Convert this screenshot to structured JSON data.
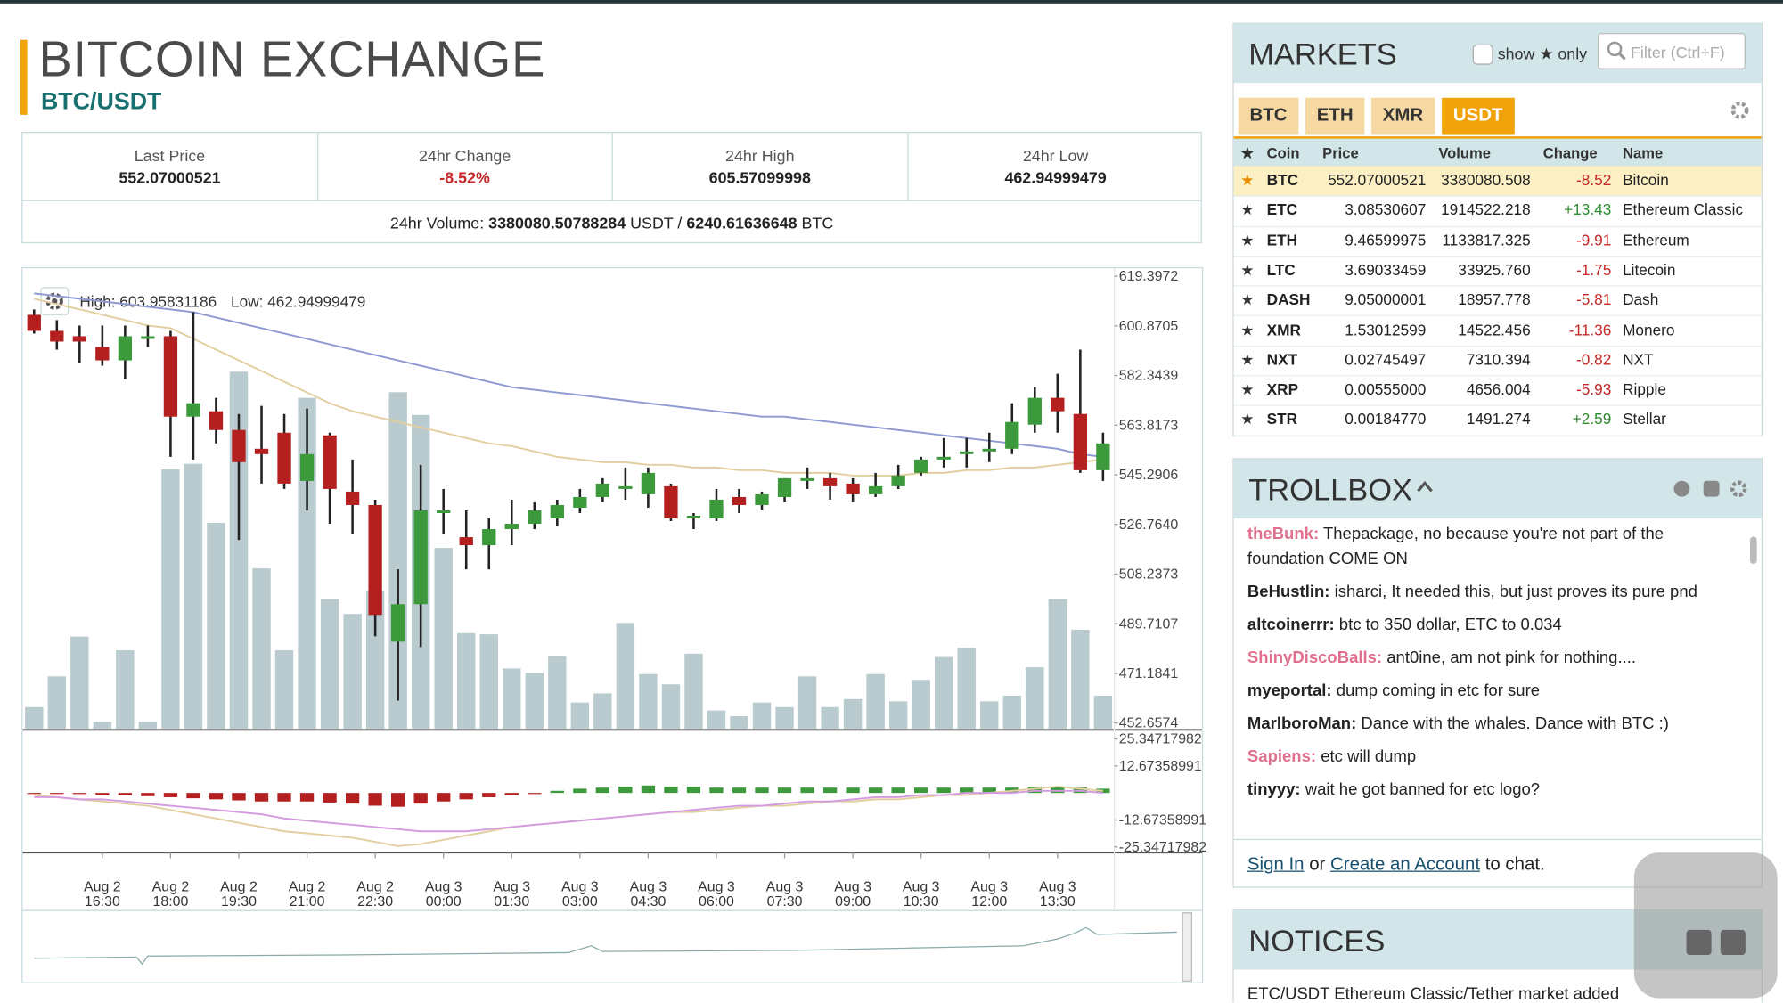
{
  "header": {
    "title": "BITCOIN EXCHANGE",
    "pair": "BTC/USDT"
  },
  "stats": {
    "cells": [
      {
        "label": "Last Price",
        "value": "552.07000521"
      },
      {
        "label": "24hr Change",
        "value": "-8.52%"
      },
      {
        "label": "24hr High",
        "value": "605.57099998"
      },
      {
        "label": "24hr Low",
        "value": "462.94999479"
      }
    ],
    "volume": {
      "label": "24hr Volume:",
      "usdt": "3380080.50788284",
      "usdt_unit": "USDT",
      "separator": "/",
      "btc": "6240.61636648",
      "btc_unit": "BTC"
    }
  },
  "chart_data": {
    "type": "candlestick",
    "high_label": "High: 603.95831186",
    "low_label": "Low: 462.94999479",
    "categories": [
      null,
      null,
      null,
      "Aug 2\n16:30",
      null,
      null,
      "Aug 2\n18:00",
      null,
      null,
      "Aug 2\n19:30",
      null,
      null,
      "Aug 2\n21:00",
      null,
      null,
      "Aug 2\n22:30",
      null,
      null,
      "Aug 3\n00:00",
      null,
      null,
      "Aug 3\n01:30",
      null,
      null,
      "Aug 3\n03:00",
      null,
      null,
      "Aug 3\n04:30",
      null,
      null,
      "Aug 3\n06:00",
      null,
      null,
      "Aug 3\n07:30",
      null,
      null,
      "Aug 3\n09:00",
      null,
      null,
      "Aug 3\n10:30",
      null,
      null,
      "Aug 3\n12:00",
      null,
      null,
      "Aug 3\n13:30",
      null,
      null
    ],
    "open": [
      605,
      599,
      597,
      593,
      588,
      596,
      597,
      567,
      569,
      562,
      555,
      561,
      543,
      560,
      539,
      534,
      483,
      497,
      531,
      522,
      519,
      525,
      527,
      529,
      533,
      537,
      540,
      538,
      541,
      529,
      529,
      537,
      534,
      537,
      543,
      544,
      542,
      538,
      541,
      546,
      551,
      553,
      554,
      555,
      564,
      574,
      568,
      547
    ],
    "high": [
      607,
      603,
      601,
      601,
      601,
      601,
      599,
      606,
      574,
      568,
      571,
      568,
      570,
      561,
      551,
      536,
      510,
      549,
      540,
      532,
      529,
      536,
      535,
      536,
      540,
      544,
      548,
      548,
      542,
      531,
      540,
      540,
      539,
      544,
      548,
      546,
      544,
      546,
      549,
      552,
      559,
      559,
      561,
      572,
      578,
      583,
      592,
      561
    ],
    "low": [
      598,
      592,
      587,
      586,
      581,
      593,
      552,
      551,
      557,
      521,
      542,
      540,
      532,
      527,
      523,
      485,
      461,
      481,
      523,
      510,
      510,
      519,
      525,
      526,
      531,
      535,
      536,
      533,
      528,
      525,
      528,
      531,
      532,
      535,
      540,
      536,
      535,
      537,
      540,
      545,
      548,
      548,
      550,
      553,
      561,
      561,
      546,
      543
    ],
    "close": [
      599,
      595,
      595,
      588,
      597,
      597,
      567,
      572,
      562,
      550,
      553,
      542,
      553,
      540,
      534,
      493,
      497,
      532,
      532,
      519,
      525,
      527,
      532,
      534,
      537,
      542,
      541,
      546,
      529,
      530,
      536,
      534,
      538,
      544,
      544,
      541,
      538,
      541,
      545,
      551,
      552,
      554,
      555,
      565,
      574,
      569,
      547,
      557
    ],
    "volume": [
      19,
      46,
      81,
      6,
      69,
      6,
      228,
      233,
      181,
      314,
      141,
      69,
      291,
      114,
      101,
      121,
      296,
      276,
      159,
      84,
      83,
      53,
      49,
      64,
      23,
      31,
      93,
      48,
      39,
      66,
      16,
      11,
      23,
      19,
      46,
      19,
      26,
      48,
      24,
      43,
      63,
      71,
      24,
      29,
      54,
      114,
      87,
      29
    ],
    "up_color": "#3c9a3c",
    "down_color": "#b3201f",
    "volume_color": "#b9cbce",
    "moving_averages": [
      {
        "color": "#8d9ad2",
        "values": [
          613,
          612,
          611,
          610,
          609,
          608,
          607,
          606,
          604,
          602,
          600,
          598,
          596,
          594,
          592,
          590,
          588,
          586,
          584,
          582,
          580,
          578,
          577,
          576,
          575,
          574,
          573,
          572,
          571,
          570,
          569,
          568,
          567,
          567,
          566,
          565,
          564,
          563,
          562,
          561,
          560,
          559,
          558,
          557,
          556,
          555,
          553,
          552
        ]
      },
      {
        "color": "#e2cf9f",
        "values": [
          611,
          609,
          607,
          605,
          603,
          601,
          600,
          596,
          592,
          588,
          584,
          580,
          576,
          572,
          569,
          567,
          565,
          563,
          561,
          559,
          557,
          556,
          554,
          552,
          551,
          550,
          550,
          549,
          549,
          548,
          548,
          547,
          547,
          546,
          546,
          546,
          545,
          545,
          545,
          546,
          546,
          547,
          547,
          548,
          548,
          549,
          550,
          551
        ]
      }
    ],
    "ylim": [
      450.54,
      621.94
    ],
    "yticks": [
      619.3972,
      600.8705,
      582.3439,
      563.8173,
      545.2906,
      {
        "value": 526.764,
        "label": "526.7640"
      },
      508.2373,
      489.7107,
      471.1841,
      452.6574
    ],
    "macd": {
      "ylim": [
        -28,
        29.1
      ],
      "yticks": [
        25.34717982,
        12.67358991,
        -12.67358991,
        -25.34717982
      ],
      "histogram": [
        -0.5,
        -0.5,
        -0.5,
        -1,
        -1,
        -1.5,
        -2,
        -2.5,
        -3,
        -3.5,
        -4,
        -4,
        -4,
        -4.5,
        -5,
        -6,
        -6.5,
        -5,
        -4,
        -3,
        -2,
        -1,
        -0.5,
        1,
        2,
        2.5,
        3,
        3.5,
        3,
        3,
        2.5,
        2.5,
        2.5,
        2.5,
        2.5,
        2.5,
        2.5,
        2.5,
        2.5,
        2.5,
        2.5,
        2.5,
        2.5,
        2.5,
        3,
        3,
        2.5,
        2
      ],
      "macd": [
        -1,
        -2,
        -3,
        -4,
        -5,
        -6,
        -8,
        -10,
        -12,
        -14,
        -16,
        -18,
        -19,
        -20,
        -21,
        -23,
        -25,
        -24,
        -22,
        -20,
        -18,
        -16,
        -15,
        -14,
        -13,
        -12,
        -11,
        -10,
        -9,
        -9,
        -8,
        -7,
        -6,
        -6,
        -5,
        -4,
        -4,
        -3,
        -3,
        -2,
        -1,
        -1,
        0,
        1,
        2,
        3,
        2,
        1
      ],
      "signal": [
        -2,
        -2,
        -3,
        -3,
        -4,
        -5,
        -6,
        -7,
        -8,
        -9,
        -10,
        -12,
        -13,
        -14,
        -15,
        -16,
        -17,
        -18,
        -18,
        -18,
        -17,
        -16,
        -15,
        -14,
        -13,
        -12,
        -11,
        -10,
        -9,
        -8,
        -7,
        -6,
        -6,
        -5,
        -4,
        -4,
        -3,
        -2,
        -2,
        -1,
        -1,
        0,
        0,
        0,
        1,
        1,
        1,
        0
      ],
      "macd_color": "#e2cf9f",
      "signal_color": "#d49be0"
    }
  },
  "markets": {
    "title": "MARKETS",
    "show_only": "show ★ only",
    "filter": "Filter (Ctrl+F)",
    "tabs": [
      "BTC",
      "ETH",
      "XMR",
      "USDT"
    ],
    "columns": [
      "Coin",
      "Price",
      "Volume",
      "Change",
      "Name"
    ],
    "rows": [
      {
        "coin": "BTC",
        "price": "552.07000521",
        "volume": "3380080.508",
        "change": "-8.52",
        "name": "Bitcoin"
      },
      {
        "coin": "ETC",
        "price": "3.08530607",
        "volume": "1914522.218",
        "change": "+13.43",
        "name": "Ethereum Classic"
      },
      {
        "coin": "ETH",
        "price": "9.46599975",
        "volume": "1133817.325",
        "change": "-9.91",
        "name": "Ethereum"
      },
      {
        "coin": "LTC",
        "price": "3.69033459",
        "volume": "33925.760",
        "change": "-1.75",
        "name": "Litecoin"
      },
      {
        "coin": "DASH",
        "price": "9.05000001",
        "volume": "18957.778",
        "change": "-5.81",
        "name": "Dash"
      },
      {
        "coin": "XMR",
        "price": "1.53012599",
        "volume": "14522.456",
        "change": "-11.36",
        "name": "Monero"
      },
      {
        "coin": "NXT",
        "price": "0.02745497",
        "volume": "7310.394",
        "change": "-0.82",
        "name": "NXT"
      },
      {
        "coin": "XRP",
        "price": "0.00555000",
        "volume": "4656.004",
        "change": "-5.93",
        "name": "Ripple"
      },
      {
        "coin": "STR",
        "price": "0.00184770",
        "volume": "1491.274",
        "change": "+2.59",
        "name": "Stellar"
      }
    ]
  },
  "trollbox": {
    "title": "TROLLBOX",
    "messages": [
      {
        "user": "theBunk:",
        "text": "Thepackage, no because you're not part of the foundation COME ON",
        "color": "#e0708e"
      },
      {
        "user": "BeHustlin:",
        "text": "isharci, It needed this, but just proves its pure pnd",
        "color": "#222222"
      },
      {
        "user": "altcoinerrr:",
        "text": "btc to 350 dollar, ETC to 0.034",
        "color": "#222222"
      },
      {
        "user": "ShinyDiscoBalls:",
        "text": "ant0ine, am not pink for nothing....",
        "color": "#e0708e"
      },
      {
        "user": "myeportal:",
        "text": "dump coming in etc for sure",
        "color": "#222222"
      },
      {
        "user": "MarlboroMan:",
        "text": "Dance with the whales. Dance with BTC :)",
        "color": "#222222"
      },
      {
        "user": "Sapiens:",
        "text": "etc will dump",
        "color": "#e0708e"
      },
      {
        "user": "tinyyy:",
        "text": "wait he got banned for etc logo?",
        "color": "#222222"
      }
    ],
    "sign_in": "Sign In",
    "or": "or",
    "create": "Create an Account",
    "to_chat": "to chat."
  },
  "notices": {
    "title": "NOTICES",
    "items": [
      "ETC/USDT Ethereum Classic/Tether market added"
    ]
  }
}
